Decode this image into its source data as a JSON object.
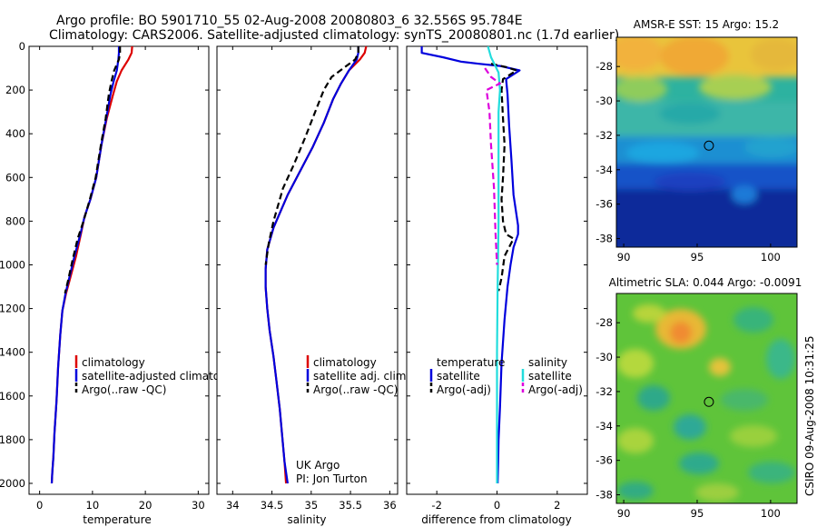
{
  "header": {
    "title_line1": "Argo profile: BO 5901710_55 02-Aug-2008 20080803_6 32.556S 95.784E",
    "title_line2": "Climatology: CARS2006. Satellite-adjusted climatology: synTS_20080801.nc (1.7d earlier)"
  },
  "credit": {
    "org": "UK Argo",
    "pi": "PI: Jon Turton",
    "stamp": "CSIRO 09-Aug-2008 10:31:25"
  },
  "colors": {
    "climatology": "#dd0000",
    "satellite": "#0000dd",
    "argo": "#000000",
    "salinity_satellite": "#22dddd",
    "salinity_argo": "#dd00dd"
  },
  "chart_data": [
    {
      "type": "line",
      "xlabel": "temperature",
      "ylabel": "",
      "xlim": [
        -2,
        32
      ],
      "ylim": [
        2050,
        0
      ],
      "x_ticks": [
        0,
        10,
        20,
        30
      ],
      "y_ticks": [
        0,
        200,
        400,
        600,
        800,
        1000,
        1200,
        1400,
        1600,
        1800,
        2000
      ],
      "legend": [
        "climatology",
        "satellite-adjusted climatology",
        "Argo(..raw -QC)"
      ],
      "legend_position": "lower-right",
      "series": [
        {
          "name": "climatology",
          "style": "solid",
          "x": [
            17.5,
            17.4,
            16.8,
            15.5,
            14.6,
            13.9,
            12.7,
            11.7,
            10.7,
            9.6,
            8.5,
            7.8,
            6.9,
            5.8,
            5.0,
            4.3,
            3.9,
            3.5,
            3.2,
            2.8,
            2.6,
            2.4,
            2.3
          ],
          "y": [
            0,
            30,
            60,
            110,
            160,
            220,
            330,
            450,
            600,
            700,
            780,
            860,
            960,
            1060,
            1130,
            1210,
            1320,
            1470,
            1620,
            1770,
            1880,
            1950,
            2000
          ]
        },
        {
          "name": "satellite-adjusted climatology",
          "style": "solid",
          "x": [
            15.0,
            15.0,
            14.9,
            14.6,
            14.0,
            13.4,
            12.6,
            11.7,
            10.7,
            9.6,
            8.5,
            7.7,
            6.6,
            5.6,
            4.9,
            4.3,
            3.9,
            3.5,
            3.2,
            2.8,
            2.6,
            2.4,
            2.3
          ],
          "y": [
            0,
            30,
            60,
            110,
            160,
            220,
            330,
            450,
            600,
            700,
            780,
            860,
            960,
            1060,
            1130,
            1210,
            1320,
            1470,
            1620,
            1770,
            1880,
            1950,
            2000
          ]
        },
        {
          "name": "Argo(..raw -QC)",
          "style": "dashed",
          "x": [
            15.2,
            15.2,
            15.0,
            14.1,
            13.6,
            13.1,
            12.5,
            11.6,
            10.6,
            9.5,
            8.3,
            7.2,
            6.2,
            5.4,
            4.8
          ],
          "y": [
            0,
            30,
            60,
            110,
            160,
            220,
            330,
            450,
            600,
            700,
            800,
            880,
            980,
            1070,
            1130
          ]
        }
      ]
    },
    {
      "type": "line",
      "xlabel": "salinity",
      "ylabel": "",
      "xlim": [
        33.8,
        36.1
      ],
      "ylim": [
        2050,
        0
      ],
      "x_ticks": [
        34,
        34.5,
        35,
        35.5,
        36
      ],
      "legend": [
        "climatology",
        "satellite adj. clim.",
        "Argo(..raw -QC)"
      ],
      "legend_position": "lower-right",
      "series": [
        {
          "name": "climatology",
          "style": "solid",
          "x": [
            35.7,
            35.68,
            35.62,
            35.48,
            35.38,
            35.28,
            35.16,
            35.02,
            34.86,
            34.7,
            34.52,
            34.44,
            34.42,
            34.42,
            34.44,
            34.47,
            34.52,
            34.56,
            34.6,
            34.63,
            34.66,
            34.68
          ],
          "y": [
            0,
            30,
            60,
            110,
            170,
            240,
            350,
            460,
            570,
            680,
            830,
            930,
            1020,
            1100,
            1200,
            1300,
            1420,
            1540,
            1660,
            1780,
            1900,
            2000
          ]
        },
        {
          "name": "satellite adj. clim.",
          "style": "solid",
          "x": [
            35.6,
            35.6,
            35.58,
            35.48,
            35.38,
            35.28,
            35.16,
            35.02,
            34.86,
            34.7,
            34.52,
            34.44,
            34.42,
            34.42,
            34.44,
            34.47,
            34.52,
            34.56,
            34.6,
            34.63,
            34.66,
            34.7
          ],
          "y": [
            0,
            30,
            60,
            110,
            170,
            240,
            350,
            460,
            570,
            680,
            830,
            930,
            1020,
            1100,
            1200,
            1300,
            1420,
            1540,
            1660,
            1780,
            1900,
            2000
          ]
        },
        {
          "name": "Argo(..raw -QC)",
          "style": "dashed",
          "x": [
            35.6,
            35.6,
            35.56,
            35.26,
            35.16,
            35.05,
            34.92,
            34.78,
            34.64,
            34.52,
            34.46,
            34.42
          ],
          "y": [
            0,
            30,
            60,
            140,
            200,
            300,
            420,
            540,
            650,
            800,
            900,
            1000
          ]
        }
      ]
    },
    {
      "type": "line",
      "xlabel": "difference from climatology",
      "ylabel": "",
      "xlim": [
        -3,
        3
      ],
      "ylim": [
        2050,
        0
      ],
      "x_ticks": [
        -2,
        0,
        2
      ],
      "legend": [
        "temperature",
        "satellite",
        "Argo(-adj)",
        "salinity",
        "satellite",
        "Argo(-adj)"
      ],
      "legend_position": "lower",
      "series": [
        {
          "name": "temperature satellite",
          "style": "solid",
          "color": "satellite",
          "x": [
            -2.5,
            -2.5,
            -1.8,
            -1.2,
            -0.6,
            0.1,
            0.75,
            0.3,
            0.35,
            0.4,
            0.48,
            0.55,
            0.7,
            0.7,
            0.55,
            0.45,
            0.35,
            0.25,
            0.15,
            0.1,
            0.05,
            0.04,
            0.02
          ],
          "y": [
            0,
            30,
            50,
            70,
            80,
            90,
            110,
            150,
            220,
            360,
            520,
            680,
            820,
            860,
            920,
            1000,
            1100,
            1250,
            1450,
            1650,
            1800,
            1900,
            2000
          ]
        },
        {
          "name": "temperature Argo(-adj)",
          "style": "dashed",
          "color": "argo",
          "x": [
            -0.2,
            0.3,
            0.65,
            0.2,
            0.15,
            0.2,
            0.25,
            0.2,
            0.15,
            0.2,
            0.3,
            0.55,
            0.25,
            0.15,
            0.05
          ],
          "y": [
            80,
            95,
            110,
            150,
            200,
            330,
            450,
            600,
            700,
            800,
            860,
            880,
            960,
            1060,
            1120
          ]
        },
        {
          "name": "salinity satellite",
          "style": "solid",
          "color": "salinity_satellite",
          "x": [
            -0.3,
            -0.2,
            0.05,
            0.1,
            0.05,
            0.05,
            0.05,
            0.02,
            0.0,
            0.0,
            0.0,
            0.0
          ],
          "y": [
            0,
            50,
            120,
            200,
            300,
            500,
            800,
            1100,
            1400,
            1700,
            1900,
            2000
          ]
        },
        {
          "name": "salinity Argo(-adj)",
          "style": "dashed",
          "color": "salinity_argo",
          "x": [
            -0.4,
            -0.2,
            0.1,
            -0.35,
            -0.25,
            -0.2,
            -0.1,
            -0.05,
            0.0
          ],
          "y": [
            100,
            140,
            170,
            200,
            300,
            450,
            650,
            850,
            1000
          ]
        }
      ]
    },
    {
      "type": "heatmap",
      "title": "AMSR-E SST: 15 Argo: 15.2",
      "xlim": [
        89.5,
        101.8
      ],
      "ylim": [
        -38.5,
        -26.3
      ],
      "x_ticks": [
        90,
        95,
        100
      ],
      "y_ticks": [
        -28,
        -30,
        -32,
        -34,
        -36,
        -38
      ],
      "marker": {
        "x": 95.8,
        "y": -32.6
      }
    },
    {
      "type": "heatmap",
      "title": "Altimetric SLA: 0.044 Argo: -0.0091",
      "xlim": [
        89.5,
        101.8
      ],
      "ylim": [
        -38.5,
        -26.3
      ],
      "x_ticks": [
        90,
        95,
        100
      ],
      "y_ticks": [
        -28,
        -30,
        -32,
        -34,
        -36,
        -38
      ],
      "marker": {
        "x": 95.8,
        "y": -32.6
      }
    }
  ]
}
